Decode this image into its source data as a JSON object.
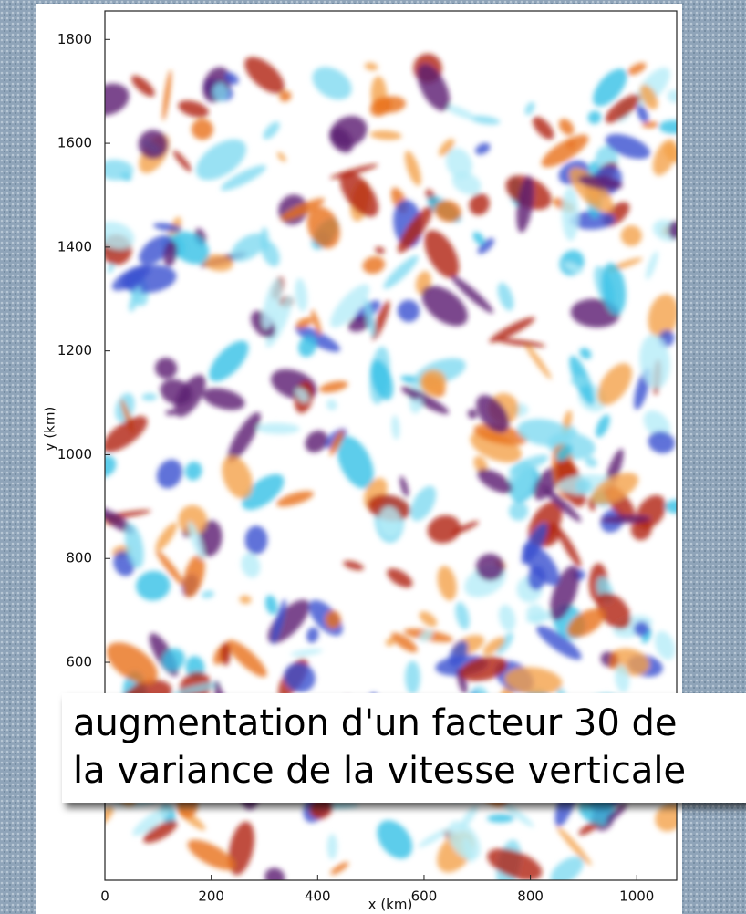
{
  "chart_data": {
    "type": "field",
    "xlabel": "x (km)",
    "ylabel": "y (km)",
    "xlim": [
      0,
      1075
    ],
    "ylim": [
      180,
      1855
    ],
    "xticks": [
      0,
      200,
      400,
      600,
      800,
      1000
    ],
    "yticks": [
      600,
      800,
      1000,
      1200,
      1400,
      1600,
      1800
    ],
    "annotation": [
      "augmentation d'un facteur 30 de",
      "la variance de la vitesse verticale"
    ]
  }
}
